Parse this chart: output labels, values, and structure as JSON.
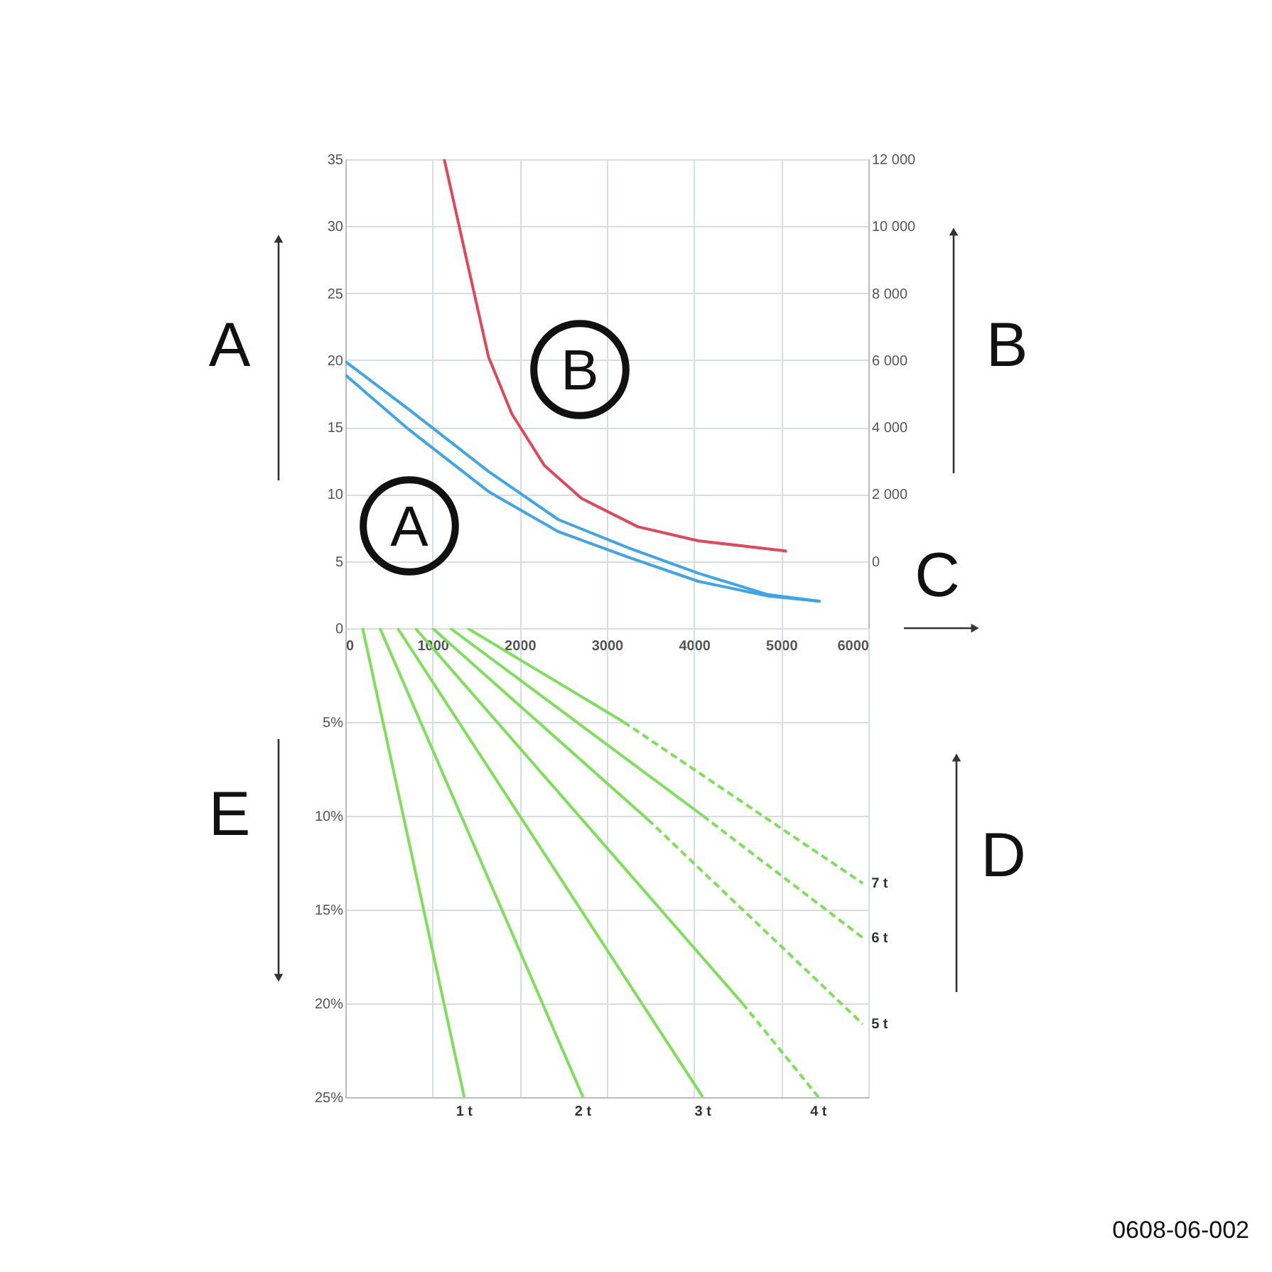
{
  "chart_data": [
    {
      "type": "line",
      "xlabel": "C",
      "ylabel": "A",
      "y2label": "B",
      "xlim": [
        0,
        6000
      ],
      "xticks": [
        0,
        1000,
        2000,
        3000,
        4000,
        5000,
        6000
      ],
      "ylim": [
        0,
        35
      ],
      "yticks": [
        0,
        5,
        10,
        15,
        20,
        25,
        30,
        35
      ],
      "y2lim": [
        -2000,
        12000
      ],
      "y2ticks": [
        0,
        {
          "value": 2000,
          "label": "2 000"
        },
        {
          "value": 4000,
          "label": "4 000"
        },
        {
          "value": 6000,
          "label": "6 000"
        },
        {
          "value": 8000,
          "label": "8 000"
        },
        {
          "value": 10000,
          "label": "10 000"
        },
        {
          "value": 12000,
          "label": "12 000"
        }
      ],
      "grid": true,
      "marker": "none",
      "line_style": "solid",
      "series": [
        {
          "color": "#3fa4e8",
          "x": [
            0,
            733,
            1642,
            2444,
            3246,
            4048,
            4850,
            5450
          ],
          "values": [
            19.9,
            16.3,
            11.7,
            8.1,
            6.0,
            4.1,
            2.5,
            2.0
          ]
        },
        {
          "color": "#3fa4e8",
          "x": [
            0,
            733,
            1642,
            2444,
            3246,
            4048,
            4850,
            5450
          ],
          "values": [
            18.9,
            14.8,
            10.2,
            7.2,
            5.3,
            3.5,
            2.4,
            2.0
          ]
        },
        {
          "color": "#e0475a",
          "axis": "y2",
          "x": [
            1134,
            1374,
            1642,
            1909,
            2283,
            2711,
            3353,
            4048,
            5064
          ],
          "values": [
            12000,
            9200,
            6100,
            4400,
            2860,
            1870,
            1030,
            610,
            300
          ]
        }
      ],
      "annotations": [
        "A",
        "B"
      ]
    },
    {
      "type": "line",
      "ylabel": "E",
      "tick_labels": "y",
      "xlim": [
        0,
        6000
      ],
      "xticks": [
        0,
        1000,
        2000,
        3000,
        4000,
        5000,
        6000
      ],
      "ylim": [
        25,
        0
      ],
      "yticks": [
        {
          "value": 5,
          "label": "5%"
        },
        {
          "value": 10,
          "label": "10%"
        },
        {
          "value": 15,
          "label": "15%"
        },
        {
          "value": 20,
          "label": "20%"
        },
        {
          "value": 25,
          "label": "25%"
        }
      ],
      "grid": true,
      "marker": "none",
      "series": [
        {
          "name": "1 t",
          "color": "#7ee05a",
          "line_style": "solid",
          "x": [
            198,
            1364
          ],
          "values": [
            0,
            25
          ]
        },
        {
          "name": "2 t",
          "color": "#7ee05a",
          "line_style": "solid",
          "x": [
            396,
            2727
          ],
          "values": [
            0,
            25
          ]
        },
        {
          "name": "3 t",
          "color": "#7ee05a",
          "line_style": "solid",
          "x": [
            599,
            4102
          ],
          "values": [
            0,
            25
          ]
        },
        {
          "color": "#7ee05a",
          "line_style": "solid",
          "x": [
            802,
            4556
          ],
          "values": [
            0,
            20.0
          ]
        },
        {
          "name": "4 t",
          "color": "#7ee05a",
          "line_style": "dashed",
          "x": [
            4556,
            5428
          ],
          "values": [
            20.0,
            25
          ]
        },
        {
          "color": "#7ee05a",
          "line_style": "solid",
          "x": [
            1000,
            3471
          ],
          "values": [
            0,
            10.2
          ]
        },
        {
          "name": "5 t",
          "color": "#7ee05a",
          "line_style": "dashed",
          "x": [
            3471,
            5936
          ],
          "values": [
            10.2,
            21.1
          ]
        },
        {
          "color": "#7ee05a",
          "line_style": "solid",
          "x": [
            1203,
            4102
          ],
          "values": [
            0,
            10.0
          ]
        },
        {
          "name": "6 t",
          "color": "#7ee05a",
          "line_style": "dashed",
          "x": [
            4102,
            5936
          ],
          "values": [
            10.0,
            16.5
          ]
        },
        {
          "color": "#7ee05a",
          "line_style": "solid",
          "x": [
            1401,
            3193
          ],
          "values": [
            0,
            5.0
          ]
        },
        {
          "name": "7 t",
          "color": "#7ee05a",
          "line_style": "dashed",
          "x": [
            3193,
            5936
          ],
          "values": [
            5.0,
            13.6
          ]
        }
      ],
      "annotations": [
        "D",
        "0608-06-002"
      ]
    }
  ]
}
